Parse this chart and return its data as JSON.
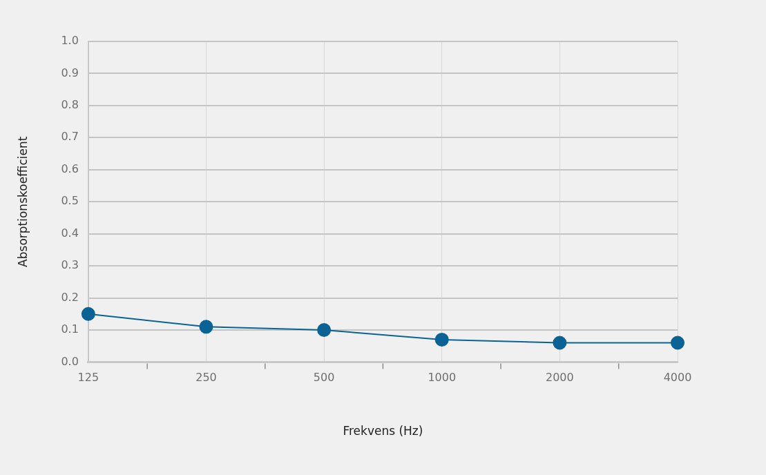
{
  "chart_data": {
    "type": "line",
    "xlabel": "Frekvens (Hz)",
    "ylabel": "Absorptionskoefficient",
    "categories": [
      "125",
      "250",
      "500",
      "1000",
      "2000",
      "4000"
    ],
    "series": [
      {
        "color": "#0b6294",
        "values": [
          0.15,
          0.11,
          0.1,
          0.07,
          0.06,
          0.06
        ]
      }
    ],
    "ylim": [
      0,
      1
    ],
    "yticks": [
      {
        "value": 0,
        "label": "0.0"
      },
      {
        "value": 0.1,
        "label": "0.1"
      },
      {
        "value": 0.2,
        "label": "0.2"
      },
      {
        "value": 0.3,
        "label": "0.3"
      },
      {
        "value": 0.4,
        "label": "0.4"
      },
      {
        "value": 0.5,
        "label": "0.5"
      },
      {
        "value": 0.6,
        "label": "0.6"
      },
      {
        "value": 0.7,
        "label": "0.7"
      },
      {
        "value": 0.8,
        "label": "0.8"
      },
      {
        "value": 0.9,
        "label": "0.9"
      },
      {
        "value": 1,
        "label": "1.0"
      }
    ],
    "grid": true,
    "marker": "circle",
    "legend": false
  }
}
